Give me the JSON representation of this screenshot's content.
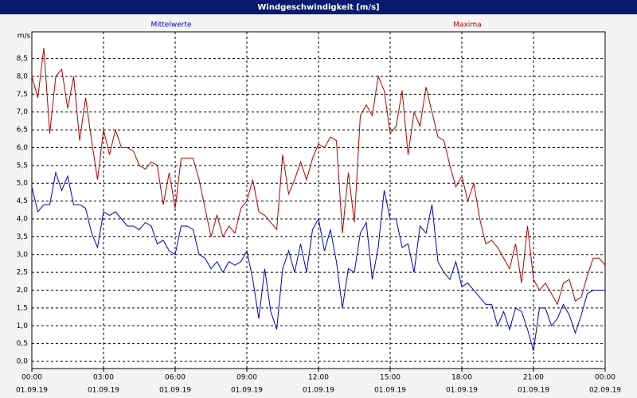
{
  "chart_data": {
    "type": "line",
    "title": "Windgeschwindigkeit [m/s]",
    "y_label": "m/s",
    "x": [
      0,
      0.25,
      0.5,
      0.75,
      1,
      1.25,
      1.5,
      1.75,
      2,
      2.25,
      2.5,
      2.75,
      3,
      3.25,
      3.5,
      3.75,
      4,
      4.25,
      4.5,
      4.75,
      5,
      5.25,
      5.5,
      5.75,
      6,
      6.25,
      6.5,
      6.75,
      7,
      7.25,
      7.5,
      7.75,
      8,
      8.25,
      8.5,
      8.75,
      9,
      9.25,
      9.5,
      9.75,
      10,
      10.25,
      10.5,
      10.75,
      11,
      11.25,
      11.5,
      11.75,
      12,
      12.25,
      12.5,
      12.75,
      13,
      13.25,
      13.5,
      13.75,
      14,
      14.25,
      14.5,
      14.75,
      15,
      15.25,
      15.5,
      15.75,
      16,
      16.25,
      16.5,
      16.75,
      17,
      17.25,
      17.5,
      17.75,
      18,
      18.25,
      18.5,
      18.75,
      19,
      19.25,
      19.5,
      19.75,
      20,
      20.25,
      20.5,
      20.75,
      21,
      21.25,
      21.5,
      21.75,
      22,
      22.25,
      22.5,
      22.75,
      23,
      23.25,
      23.5,
      23.75,
      24
    ],
    "series": [
      {
        "name": "Mittelwerte",
        "color": "#0000c0",
        "values": [
          4.9,
          4.2,
          4.4,
          4.4,
          5.3,
          4.8,
          5.2,
          4.4,
          4.4,
          4.3,
          3.6,
          3.2,
          4.2,
          4.1,
          4.2,
          4.0,
          3.8,
          3.8,
          3.7,
          3.9,
          3.8,
          3.3,
          3.4,
          3.1,
          3.0,
          3.8,
          3.8,
          3.7,
          3.0,
          2.9,
          2.6,
          2.8,
          2.5,
          2.8,
          2.7,
          2.8,
          3.1,
          2.3,
          1.2,
          2.6,
          1.4,
          0.9,
          2.6,
          3.1,
          2.5,
          3.3,
          2.5,
          3.7,
          4.0,
          3.1,
          3.7,
          2.8,
          1.5,
          2.6,
          2.5,
          3.6,
          3.9,
          2.3,
          3.2,
          4.8,
          4.0,
          4.0,
          3.2,
          3.3,
          2.5,
          3.8,
          3.6,
          4.4,
          2.8,
          2.5,
          2.3,
          2.8,
          2.1,
          2.2,
          2.0,
          1.8,
          1.6,
          1.6,
          1.0,
          1.4,
          0.9,
          1.5,
          1.4,
          0.9,
          0.3,
          1.5,
          1.5,
          1.0,
          1.2,
          1.6,
          1.3,
          0.8,
          1.3,
          1.9,
          2.0,
          2.0,
          2.0
        ]
      },
      {
        "name": "Maxima",
        "color": "#b00000",
        "values": [
          8.0,
          7.4,
          8.8,
          6.4,
          8.0,
          8.2,
          7.1,
          8.0,
          6.2,
          7.4,
          6.2,
          5.1,
          6.5,
          5.8,
          6.5,
          6.0,
          6.0,
          5.9,
          5.5,
          5.4,
          5.6,
          5.5,
          4.4,
          5.3,
          4.3,
          5.7,
          5.7,
          5.7,
          5.1,
          4.3,
          3.5,
          4.1,
          3.5,
          3.8,
          3.6,
          4.3,
          4.5,
          5.1,
          4.2,
          4.1,
          3.9,
          3.7,
          5.8,
          4.7,
          5.1,
          5.6,
          5.1,
          5.7,
          6.1,
          6.0,
          6.3,
          6.2,
          3.6,
          5.3,
          3.9,
          6.9,
          7.2,
          6.9,
          8.0,
          7.6,
          6.4,
          6.6,
          7.6,
          5.8,
          7.0,
          6.6,
          7.7,
          7.0,
          6.3,
          6.2,
          5.5,
          4.9,
          5.2,
          4.5,
          5.0,
          4.0,
          3.3,
          3.4,
          3.2,
          2.9,
          2.6,
          3.3,
          2.2,
          3.8,
          2.3,
          2.0,
          2.2,
          1.9,
          1.6,
          2.2,
          2.3,
          1.7,
          1.8,
          2.4,
          2.9,
          2.9,
          2.7
        ]
      }
    ],
    "xlim": [
      0,
      24
    ],
    "xticks": [
      {
        "value": 0,
        "label": [
          "00:00",
          "01.09.19"
        ]
      },
      {
        "value": 3,
        "label": [
          "03:00",
          "01.09.19"
        ]
      },
      {
        "value": 6,
        "label": [
          "06:00",
          "01.09.19"
        ]
      },
      {
        "value": 9,
        "label": [
          "09:00",
          "01.09.19"
        ]
      },
      {
        "value": 12,
        "label": [
          "12:00",
          "01.09.19"
        ]
      },
      {
        "value": 15,
        "label": [
          "15:00",
          "01.09.19"
        ]
      },
      {
        "value": 18,
        "label": [
          "18:00",
          "01.09.19"
        ]
      },
      {
        "value": 21,
        "label": [
          "21:00",
          "01.09.19"
        ]
      },
      {
        "value": 24,
        "label": [
          "00:00",
          "02.09.19"
        ]
      }
    ],
    "ylim": [
      -0.2,
      9.25
    ],
    "yticks": [
      {
        "value": 0,
        "label": "0,0"
      },
      {
        "value": 0.5,
        "label": "0,5"
      },
      {
        "value": 1,
        "label": "1,0"
      },
      {
        "value": 1.5,
        "label": "1,5"
      },
      {
        "value": 2,
        "label": "2,0"
      },
      {
        "value": 2.5,
        "label": "2,5"
      },
      {
        "value": 3,
        "label": "3,0"
      },
      {
        "value": 3.5,
        "label": "3,5"
      },
      {
        "value": 4,
        "label": "4,0"
      },
      {
        "value": 4.5,
        "label": "4,5"
      },
      {
        "value": 5,
        "label": "5,0"
      },
      {
        "value": 5.5,
        "label": "5,5"
      },
      {
        "value": 6,
        "label": "6,0"
      },
      {
        "value": 6.5,
        "label": "6,5"
      },
      {
        "value": 7,
        "label": "7,0"
      },
      {
        "value": 7.5,
        "label": "7,5"
      },
      {
        "value": 8,
        "label": "8,0"
      },
      {
        "value": 8.5,
        "label": "8,5"
      }
    ],
    "grid": true
  }
}
